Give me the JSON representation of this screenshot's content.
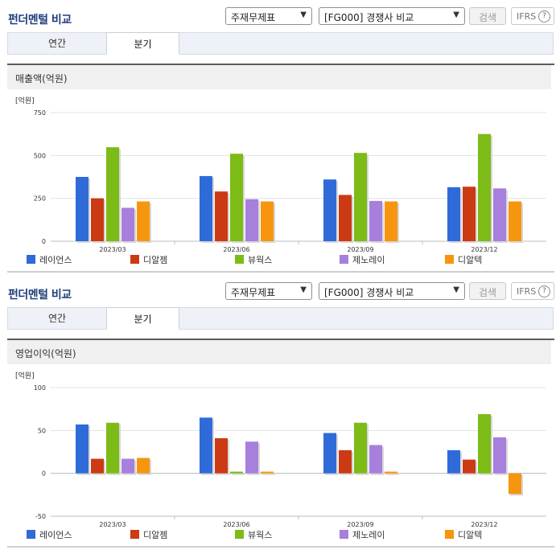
{
  "panels": [
    {
      "title": "펀더멘털 비교",
      "select_type": "주재무제표",
      "select_group": "[FG000] 경쟁사 비교",
      "search_label": "검색",
      "ifrs_label": "IFRS",
      "ifrs_help": "?",
      "tabs": [
        {
          "label": "연간"
        },
        {
          "label": "분기"
        }
      ],
      "chart_title": "매출액(억원)"
    },
    {
      "title": "펀더멘털 비교",
      "select_type": "주재무제표",
      "select_group": "[FG000] 경쟁사 비교",
      "search_label": "검색",
      "ifrs_label": "IFRS",
      "ifrs_help": "?",
      "tabs": [
        {
          "label": "연간"
        },
        {
          "label": "분기"
        }
      ],
      "chart_title": "영업이익(억원)"
    }
  ],
  "chart_data": [
    {
      "type": "bar",
      "title": "매출액(억원)",
      "unit_label": "[억원]",
      "categories": [
        "2023/03",
        "2023/06",
        "2023/09",
        "2023/12"
      ],
      "ylim": [
        0,
        750
      ],
      "yticks": [
        0,
        250,
        500,
        750
      ],
      "legend_position": "bottom",
      "series": [
        {
          "name": "레이언스",
          "color": "#2f6bd8",
          "values": [
            375,
            380,
            360,
            315
          ]
        },
        {
          "name": "디알젬",
          "color": "#cc3a14",
          "values": [
            250,
            290,
            270,
            318
          ]
        },
        {
          "name": "뷰웍스",
          "color": "#7dbb16",
          "values": [
            548,
            510,
            515,
            625
          ]
        },
        {
          "name": "제노레이",
          "color": "#a77fdc",
          "values": [
            195,
            245,
            235,
            308
          ]
        },
        {
          "name": "디알텍",
          "color": "#f6960f",
          "values": [
            232,
            232,
            232,
            232
          ]
        }
      ]
    },
    {
      "type": "bar",
      "title": "영업이익(억원)",
      "unit_label": "[억원]",
      "categories": [
        "2023/03",
        "2023/06",
        "2023/09",
        "2023/12"
      ],
      "ylim": [
        -50,
        100
      ],
      "yticks": [
        -50,
        0,
        50,
        100
      ],
      "legend_position": "bottom",
      "series": [
        {
          "name": "레이언스",
          "color": "#2f6bd8",
          "values": [
            57,
            65,
            47,
            27
          ]
        },
        {
          "name": "디알젬",
          "color": "#cc3a14",
          "values": [
            17,
            41,
            27,
            16
          ]
        },
        {
          "name": "뷰웍스",
          "color": "#7dbb16",
          "values": [
            59,
            2,
            59,
            69
          ]
        },
        {
          "name": "제노레이",
          "color": "#a77fdc",
          "values": [
            17,
            37,
            33,
            42
          ]
        },
        {
          "name": "디알텍",
          "color": "#f6960f",
          "values": [
            18,
            2,
            2,
            -24
          ]
        }
      ]
    }
  ]
}
